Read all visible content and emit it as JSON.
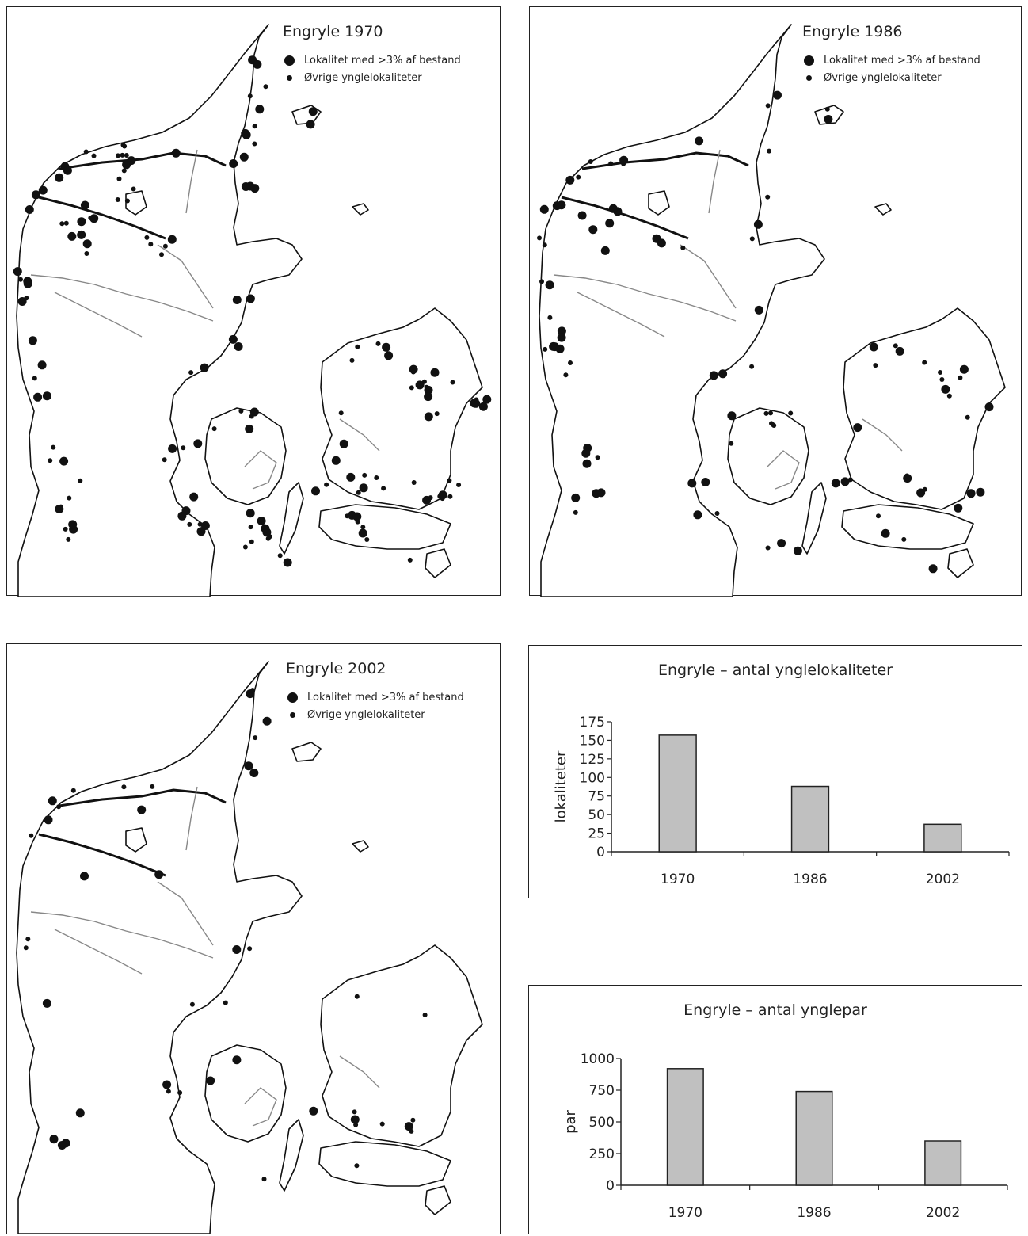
{
  "maps": [
    {
      "title": "Engryle 1970",
      "legend": {
        "large": "Lokalitet med >3% af bestand",
        "small": "Øvrige ynglelokaliteter"
      }
    },
    {
      "title": "Engryle 1986",
      "legend": {
        "large": "Lokalitet med >3% af bestand",
        "small": "Øvrige ynglelokaliteter"
      }
    },
    {
      "title": "Engryle 2002",
      "legend": {
        "large": "Lokalitet med >3% af bestand",
        "small": "Øvrige ynglelokaliteter"
      }
    }
  ],
  "colors": {
    "outline": "#111111",
    "rivers": "#888888",
    "bars": "#c0c0c0",
    "dots": "#111111"
  },
  "chart_data": [
    {
      "type": "bar",
      "title": "Engryle – antal ynglelokaliteter",
      "categories": [
        "1970",
        "1986",
        "2002"
      ],
      "values": [
        157,
        88,
        37
      ],
      "xlabel": "",
      "ylabel": "lokaliteter",
      "ylim": [
        0,
        175
      ],
      "yticks": [
        0,
        25,
        50,
        75,
        100,
        125,
        150,
        175
      ],
      "grid": false
    },
    {
      "type": "bar",
      "title": "Engryle – antal ynglepar",
      "categories": [
        "1970",
        "1986",
        "2002"
      ],
      "values": [
        920,
        740,
        350
      ],
      "xlabel": "",
      "ylabel": "par",
      "ylim": [
        0,
        1000
      ],
      "yticks": [
        0,
        250,
        500,
        750,
        1000
      ],
      "grid": false
    }
  ]
}
